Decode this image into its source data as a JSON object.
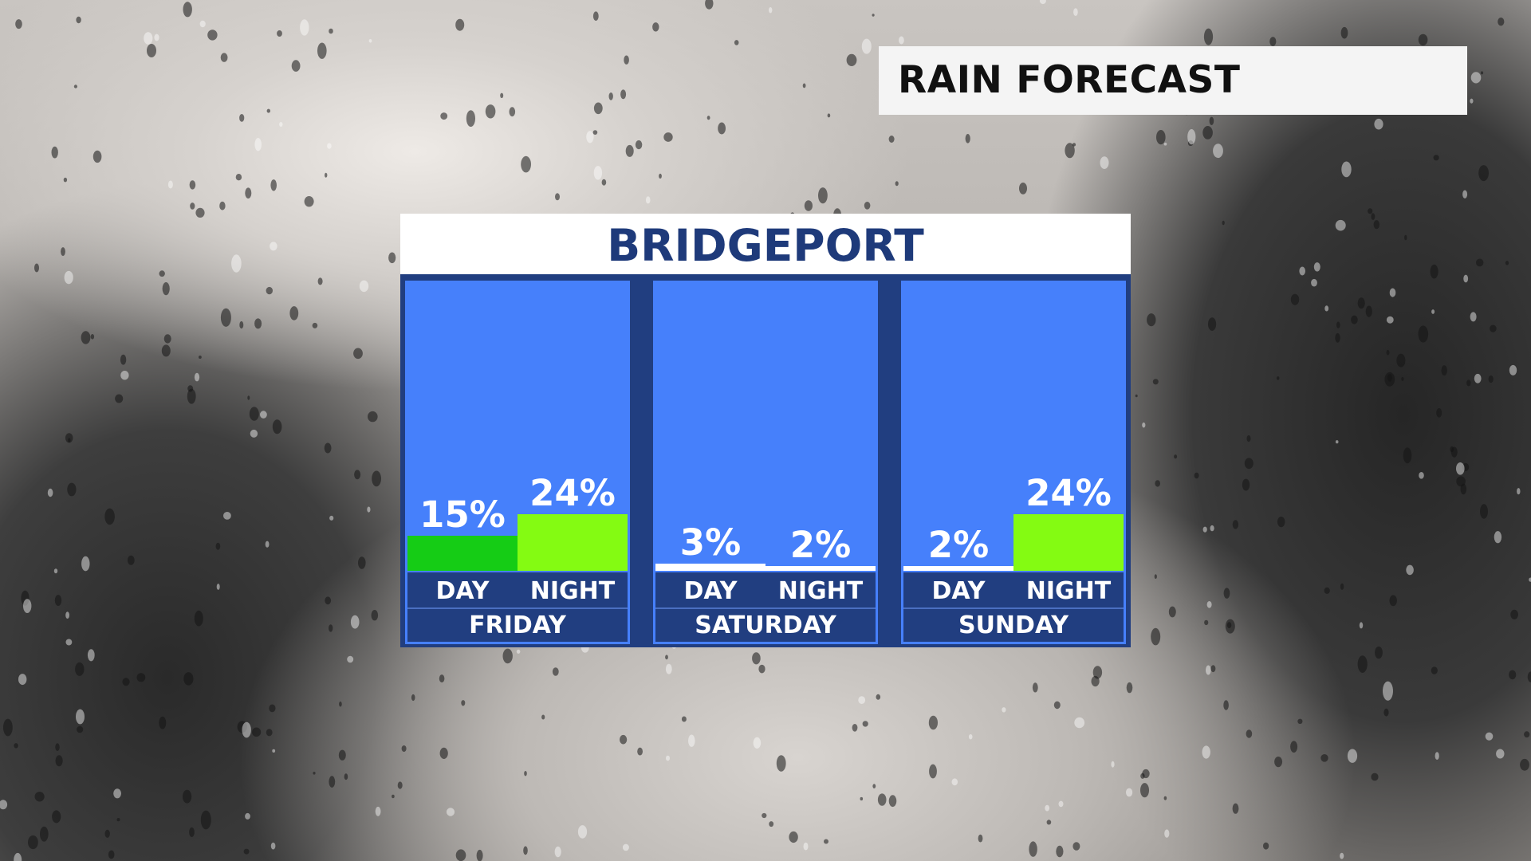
{
  "header": {
    "title": "RAIN FORECAST"
  },
  "chart_data": {
    "type": "bar",
    "title": "BRIDGEPORT",
    "unit": "%",
    "ylim": [
      0,
      100
    ],
    "categories": [
      "FRIDAY",
      "SATURDAY",
      "SUNDAY"
    ],
    "periods": [
      "DAY",
      "NIGHT"
    ],
    "days": [
      {
        "name": "FRIDAY",
        "periods": [
          {
            "label": "DAY",
            "value": 15,
            "display": "15%",
            "color": "#15cc15"
          },
          {
            "label": "NIGHT",
            "value": 24,
            "display": "24%",
            "color": "#84fb12"
          }
        ]
      },
      {
        "name": "SATURDAY",
        "periods": [
          {
            "label": "DAY",
            "value": 3,
            "display": "3%",
            "color": "#ffffff"
          },
          {
            "label": "NIGHT",
            "value": 2,
            "display": "2%",
            "color": "#ffffff"
          }
        ]
      },
      {
        "name": "SUNDAY",
        "periods": [
          {
            "label": "DAY",
            "value": 2,
            "display": "2%",
            "color": "#ffffff"
          },
          {
            "label": "NIGHT",
            "value": 24,
            "display": "24%",
            "color": "#84fb12"
          }
        ]
      }
    ]
  }
}
